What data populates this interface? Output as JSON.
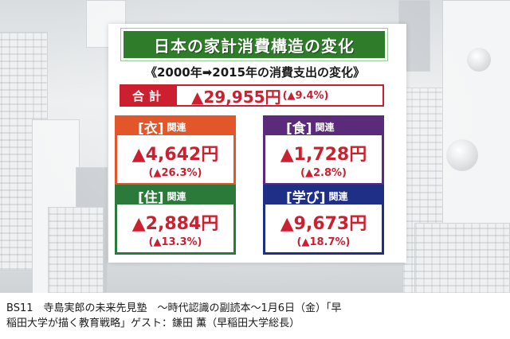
{
  "slide": {
    "title": "日本の家計消費構造の変化",
    "subtitle": "《2000年➡2015年の消費支出の変化》",
    "total": {
      "label": "合計",
      "value": "▲29,955円",
      "change": "(▲9.4%)"
    },
    "categories": [
      {
        "name": "[衣]",
        "suffix": "関連",
        "amount": "▲4,642円",
        "change": "(▲26.3%)",
        "color": "#e2562a"
      },
      {
        "name": "[食]",
        "suffix": "関連",
        "amount": "▲1,728円",
        "change": "(▲2.8%)",
        "color": "#5b2a7a"
      },
      {
        "name": "[住]",
        "suffix": "関連",
        "amount": "▲2,884円",
        "change": "(▲13.3%)",
        "color": "#2b7a3a"
      },
      {
        "name": "[学び]",
        "suffix": "関連",
        "amount": "▲9,673円",
        "change": "(▲18.7%)",
        "color": "#1f2f86"
      }
    ]
  },
  "caption": {
    "line1": "BS11　寺島実郎の未来先見塾　～時代認識の副読本～1月6日（金）「早",
    "line2": "稲田大学が描く教育戦略」ゲスト：鎌田 薫（早稲田大学総長）"
  },
  "colors": {
    "title_bg": "#2f7d2b",
    "accent_red": "#cc2030"
  }
}
